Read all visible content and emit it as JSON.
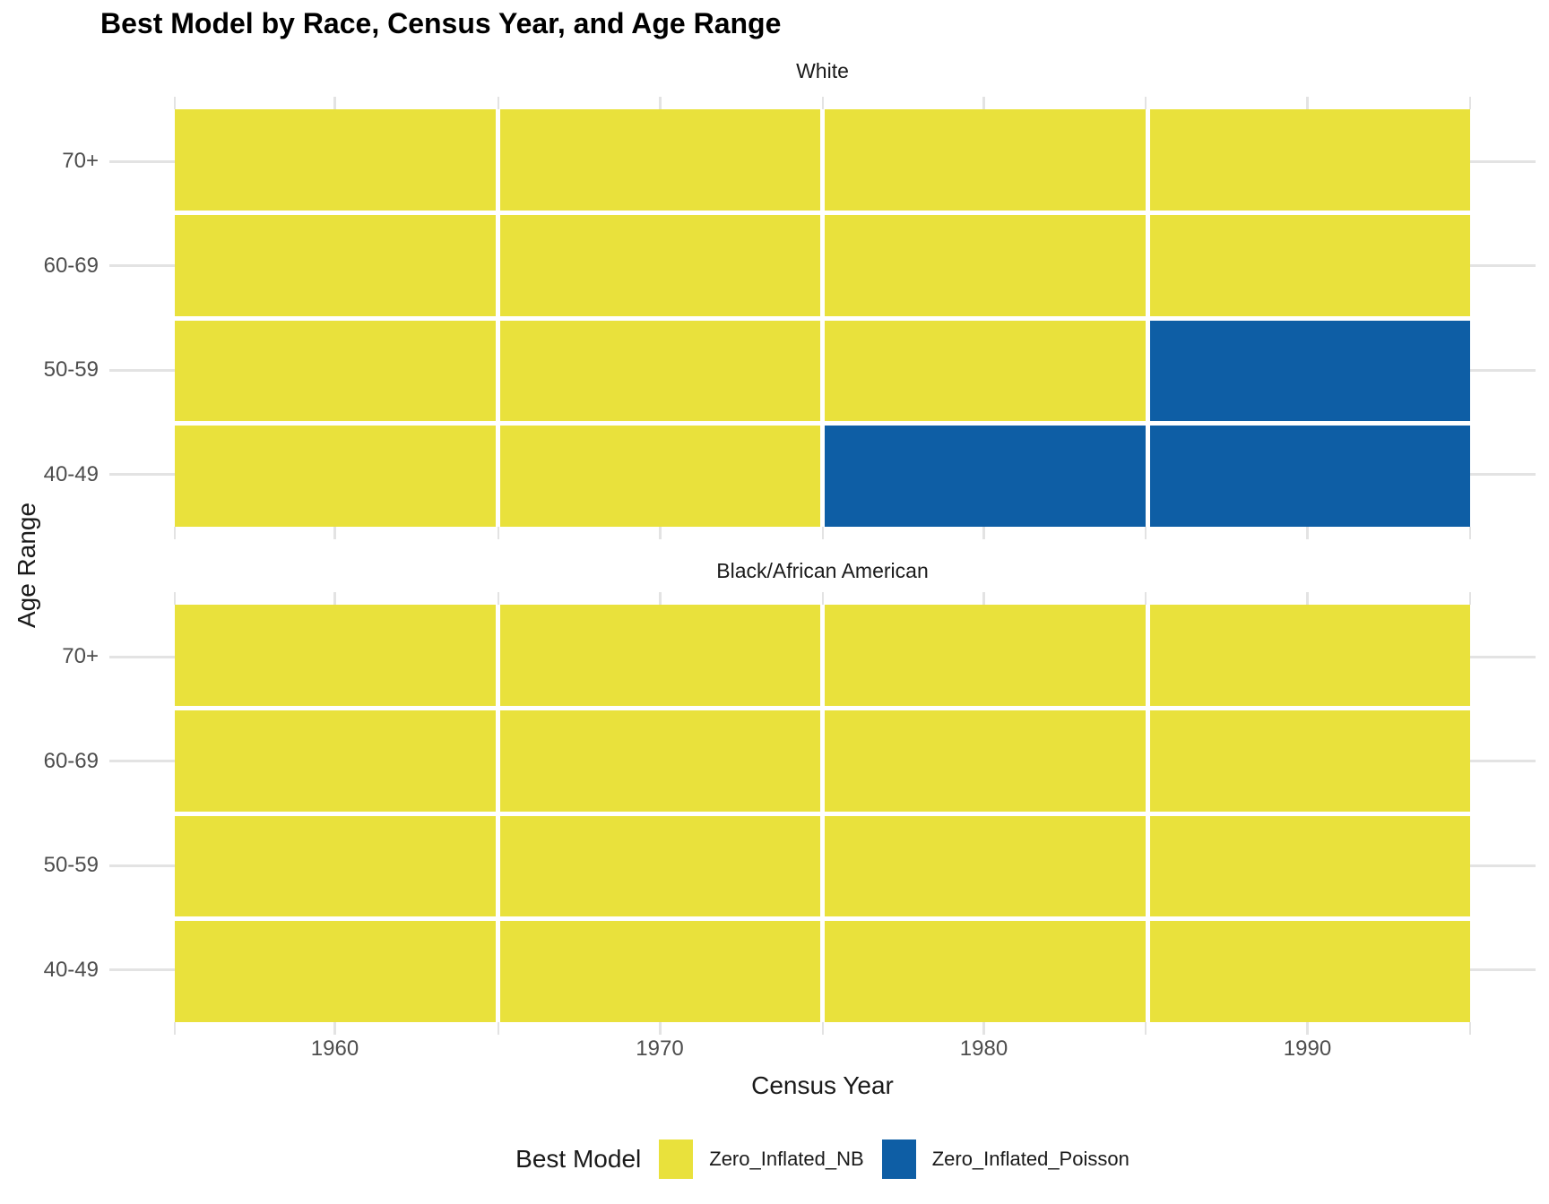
{
  "title": "Best Model by Race, Census Year, and Age Range",
  "axes": {
    "x_title": "Census Year",
    "y_title": "Age Range",
    "x_ticks": [
      "1960",
      "1970",
      "1980",
      "1990"
    ],
    "y_ticks": [
      "70+",
      "60-69",
      "50-59",
      "40-49"
    ]
  },
  "legend": {
    "title": "Best Model",
    "entries": [
      {
        "label": "Zero_Inflated_NB",
        "color": "#e9e13c"
      },
      {
        "label": "Zero_Inflated_Poisson",
        "color": "#0e5ea5"
      }
    ]
  },
  "colors": {
    "grid": "#e3e3e3",
    "tick_text": "#4d4d4d",
    "text": "#1a1a1a"
  },
  "chart_data": {
    "type": "heatmap",
    "title": "Best Model by Race, Census Year, and Age Range",
    "xlabel": "Census Year",
    "ylabel": "Age Range",
    "x": [
      1960,
      1970,
      1980,
      1990
    ],
    "y_top_to_bottom": [
      "70+",
      "60-69",
      "50-59",
      "40-49"
    ],
    "legend_title": "Best Model",
    "value_colors": {
      "Zero_Inflated_NB": "#e9e13c",
      "Zero_Inflated_Poisson": "#0e5ea5"
    },
    "facets": [
      {
        "label": "White",
        "values": [
          [
            "Zero_Inflated_NB",
            "Zero_Inflated_NB",
            "Zero_Inflated_NB",
            "Zero_Inflated_NB"
          ],
          [
            "Zero_Inflated_NB",
            "Zero_Inflated_NB",
            "Zero_Inflated_NB",
            "Zero_Inflated_NB"
          ],
          [
            "Zero_Inflated_NB",
            "Zero_Inflated_NB",
            "Zero_Inflated_NB",
            "Zero_Inflated_Poisson"
          ],
          [
            "Zero_Inflated_NB",
            "Zero_Inflated_NB",
            "Zero_Inflated_Poisson",
            "Zero_Inflated_Poisson"
          ]
        ]
      },
      {
        "label": "Black/African American",
        "values": [
          [
            "Zero_Inflated_NB",
            "Zero_Inflated_NB",
            "Zero_Inflated_NB",
            "Zero_Inflated_NB"
          ],
          [
            "Zero_Inflated_NB",
            "Zero_Inflated_NB",
            "Zero_Inflated_NB",
            "Zero_Inflated_NB"
          ],
          [
            "Zero_Inflated_NB",
            "Zero_Inflated_NB",
            "Zero_Inflated_NB",
            "Zero_Inflated_NB"
          ],
          [
            "Zero_Inflated_NB",
            "Zero_Inflated_NB",
            "Zero_Inflated_NB",
            "Zero_Inflated_NB"
          ]
        ]
      }
    ]
  }
}
